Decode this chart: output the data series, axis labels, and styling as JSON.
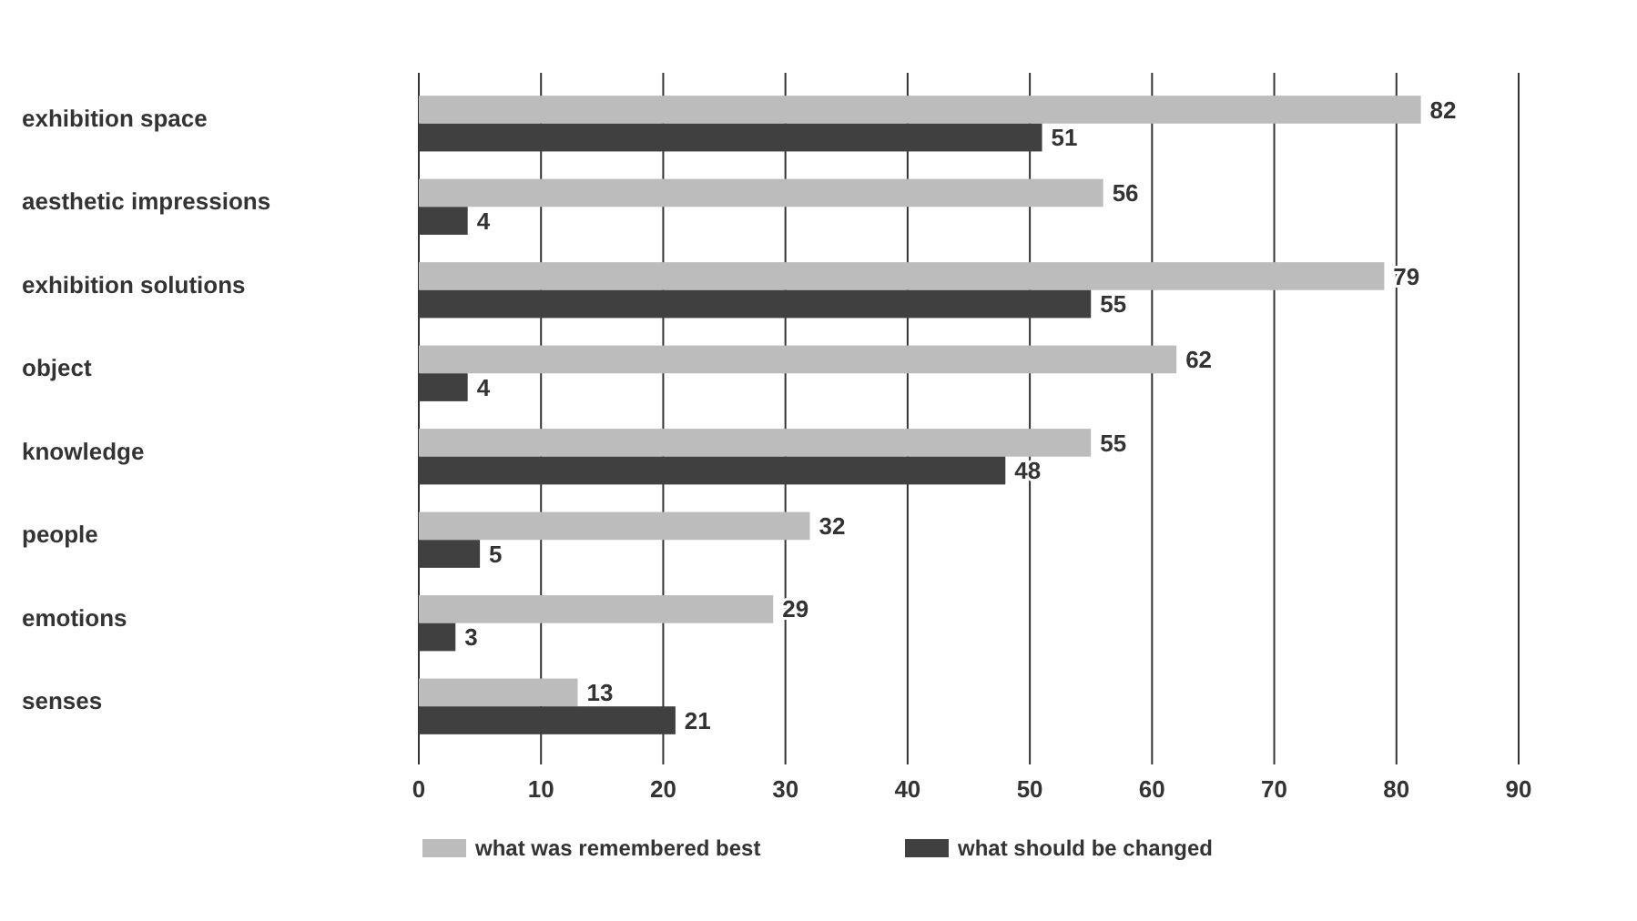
{
  "chart_data": {
    "type": "bar",
    "orientation": "horizontal",
    "categories": [
      "exhibition space",
      "aesthetic impressions",
      "exhibition solutions",
      "object",
      "knowledge",
      "people",
      "emotions",
      "senses"
    ],
    "series": [
      {
        "name": "what was remembered best",
        "color": "#bcbcbc",
        "values": [
          82,
          56,
          79,
          62,
          55,
          32,
          29,
          13
        ]
      },
      {
        "name": "what should be changed",
        "color": "#404040",
        "values": [
          51,
          4,
          55,
          4,
          48,
          5,
          3,
          21
        ]
      }
    ],
    "xlim": [
      0,
      90
    ],
    "xticks": [
      0,
      10,
      20,
      30,
      40,
      50,
      60,
      70,
      80,
      90
    ],
    "grid": "x",
    "legend": "bottom",
    "data_labels": true
  }
}
